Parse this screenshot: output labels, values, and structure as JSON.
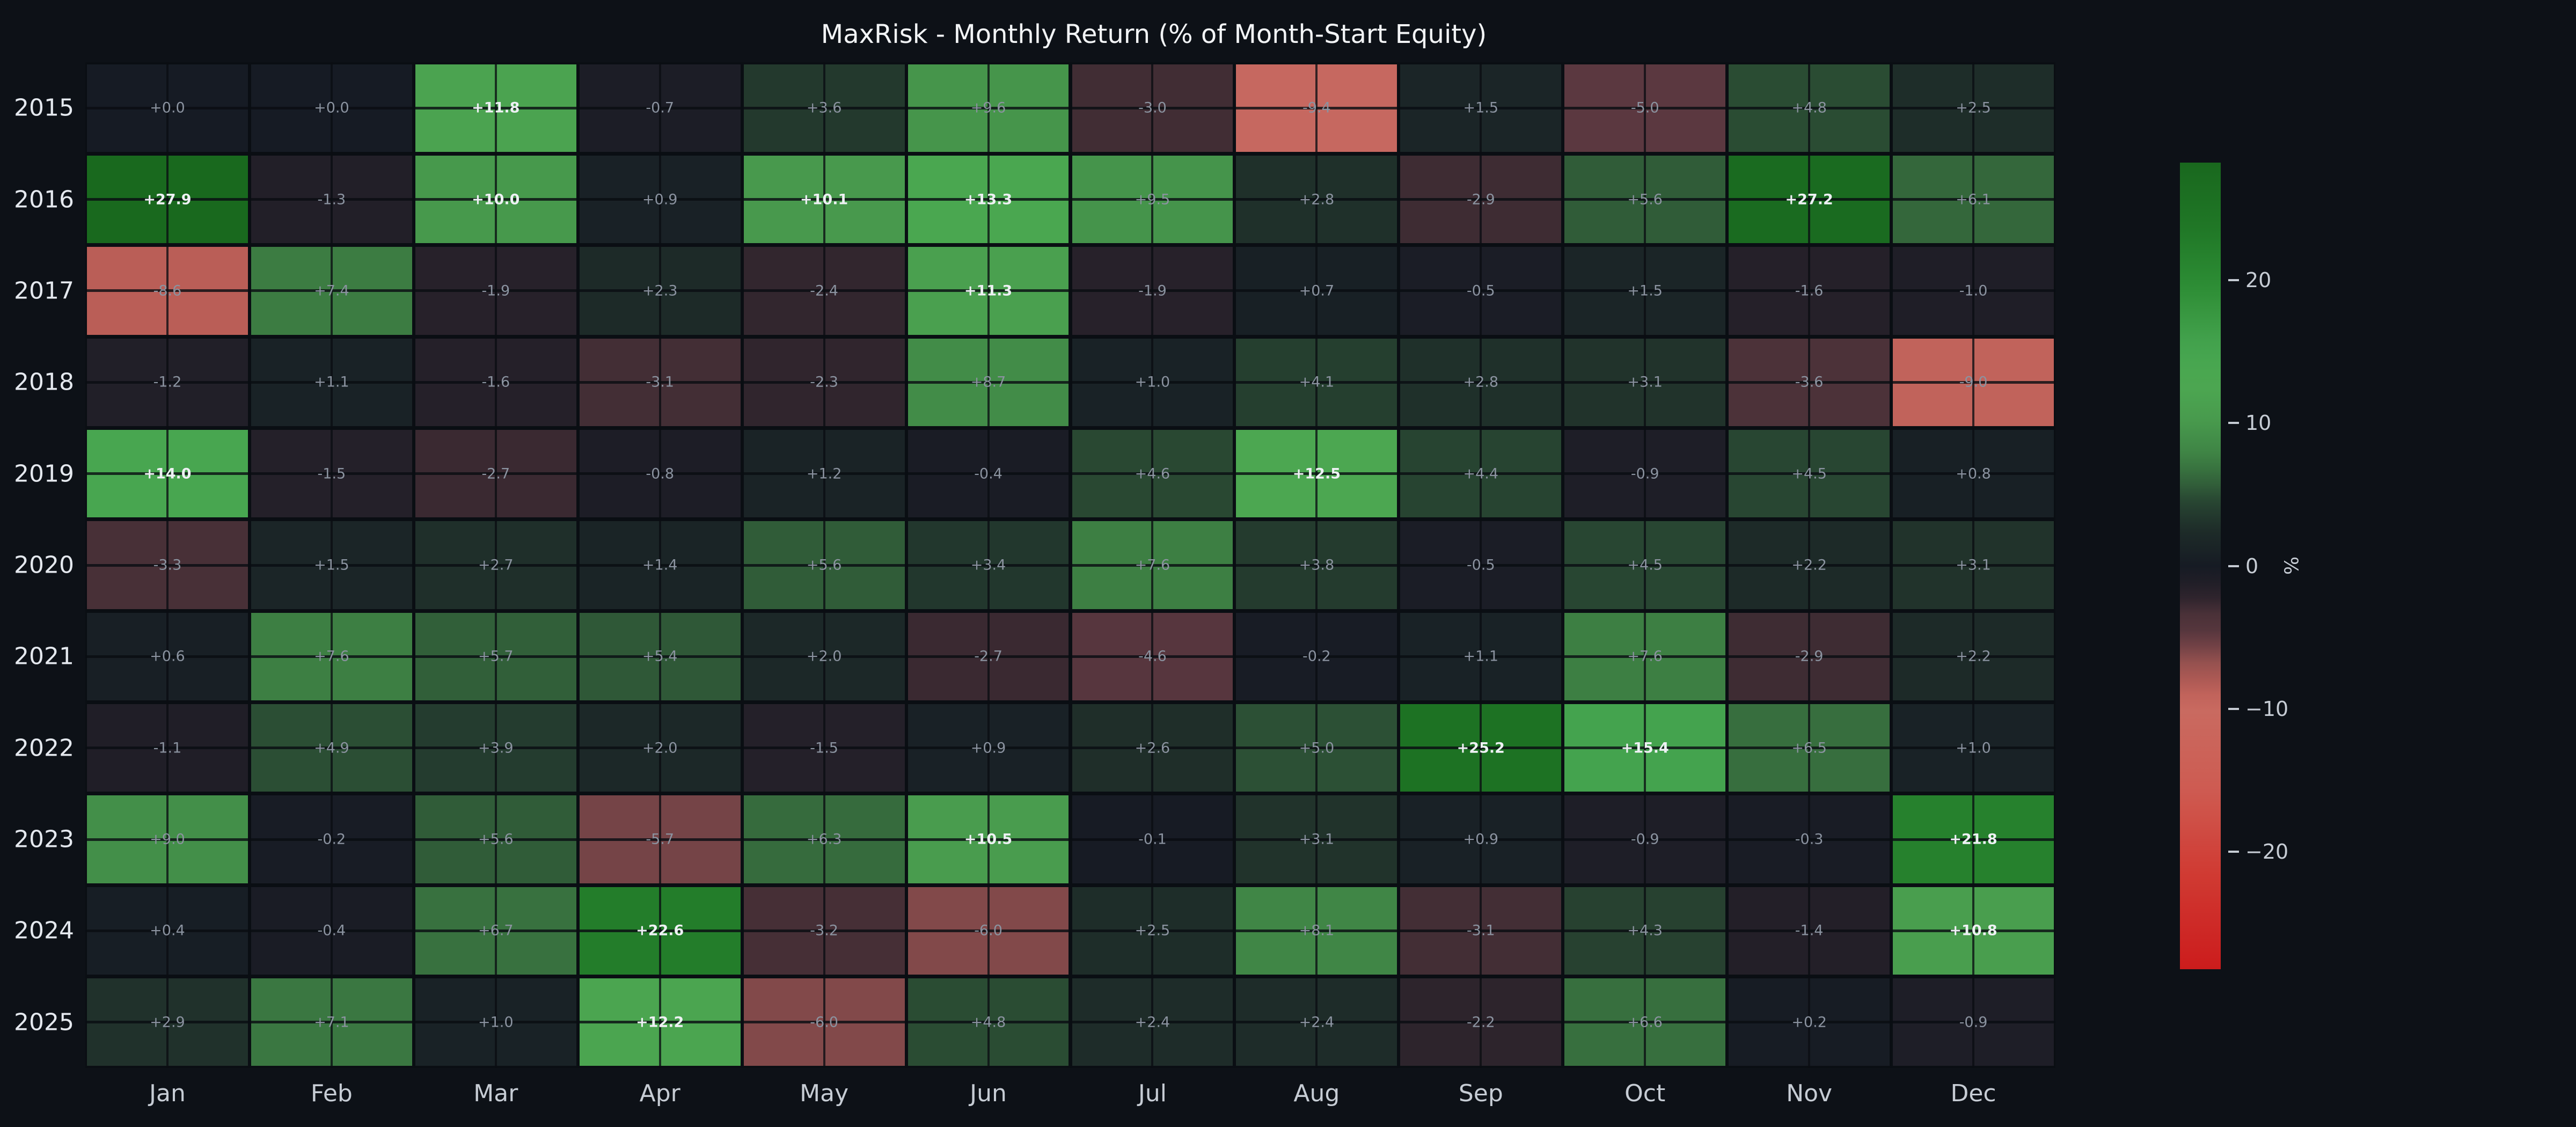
{
  "title": "MaxRisk - Monthly Return (% of Month-Start Equity)",
  "chart_data": {
    "type": "heatmap",
    "title": "MaxRisk - Monthly Return (% of Month-Start Equity)",
    "x_categories": [
      "Jan",
      "Feb",
      "Mar",
      "Apr",
      "May",
      "Jun",
      "Jul",
      "Aug",
      "Sep",
      "Oct",
      "Nov",
      "Dec"
    ],
    "y_categories": [
      "2015",
      "2016",
      "2017",
      "2018",
      "2019",
      "2020",
      "2021",
      "2022",
      "2023",
      "2024",
      "2025"
    ],
    "values": [
      [
        0.0,
        0.0,
        11.8,
        -0.7,
        3.6,
        9.6,
        -3.0,
        -9.4,
        1.5,
        -5.0,
        4.8,
        2.5
      ],
      [
        27.9,
        -1.3,
        10.0,
        0.9,
        10.1,
        13.3,
        9.5,
        2.8,
        -2.9,
        5.6,
        27.2,
        6.1
      ],
      [
        -8.6,
        7.4,
        -1.9,
        2.3,
        -2.4,
        11.3,
        -1.9,
        0.7,
        -0.5,
        1.5,
        -1.6,
        -1.0
      ],
      [
        -1.2,
        1.1,
        -1.6,
        -3.1,
        -2.3,
        8.7,
        1.0,
        4.1,
        2.8,
        3.1,
        -3.6,
        -9.0
      ],
      [
        14.0,
        -1.5,
        -2.7,
        -0.8,
        1.2,
        -0.4,
        4.6,
        12.5,
        4.4,
        -0.9,
        4.5,
        0.8
      ],
      [
        -3.3,
        1.5,
        2.7,
        1.4,
        5.6,
        3.4,
        7.6,
        3.8,
        -0.5,
        4.5,
        2.2,
        3.1
      ],
      [
        0.6,
        7.6,
        5.7,
        5.4,
        2.0,
        -2.7,
        -4.6,
        -0.2,
        1.1,
        7.6,
        -2.9,
        2.2
      ],
      [
        -1.1,
        4.9,
        3.9,
        2.0,
        -1.5,
        0.9,
        2.6,
        5.0,
        25.2,
        15.4,
        6.5,
        1.0
      ],
      [
        9.0,
        -0.2,
        5.6,
        -5.7,
        6.3,
        10.5,
        -0.1,
        3.1,
        0.9,
        -0.9,
        -0.3,
        21.8
      ],
      [
        0.4,
        -0.4,
        6.7,
        22.6,
        -3.2,
        -6.0,
        2.5,
        8.1,
        -3.1,
        4.3,
        -1.4,
        10.8
      ],
      [
        2.9,
        7.1,
        1.0,
        12.2,
        -6.0,
        4.8,
        2.4,
        2.4,
        -2.2,
        6.6,
        0.2,
        -0.9
      ]
    ],
    "value_label_style": {
      "positive_prefix": "+",
      "decimals": 1,
      "bold_white_threshold_abs": 10
    },
    "colorbar": {
      "label": "%",
      "ticks": [
        20,
        10,
        0,
        -10,
        -20
      ],
      "vmin": -28.2,
      "vmax": 28.2,
      "position": "right"
    },
    "grid": "crosshair-lines-through-cell-centers",
    "legend_position": "none",
    "colors": {
      "background": "#0d1117",
      "cell_gap": "#0a0e13",
      "zero_cell": "#161b24",
      "positive_bright": "#4ca851",
      "positive_extreme": "#1a6a1f",
      "negative_salmon": "#c96b62",
      "negative_extreme": "#cc1c1c",
      "cell_text_gray": "#8b93a0",
      "cell_text_white": "#eef1f4",
      "axis_text": "#c6ccd4",
      "year_text": "#e4e8ee",
      "title_text": "#f2f4f6"
    }
  }
}
